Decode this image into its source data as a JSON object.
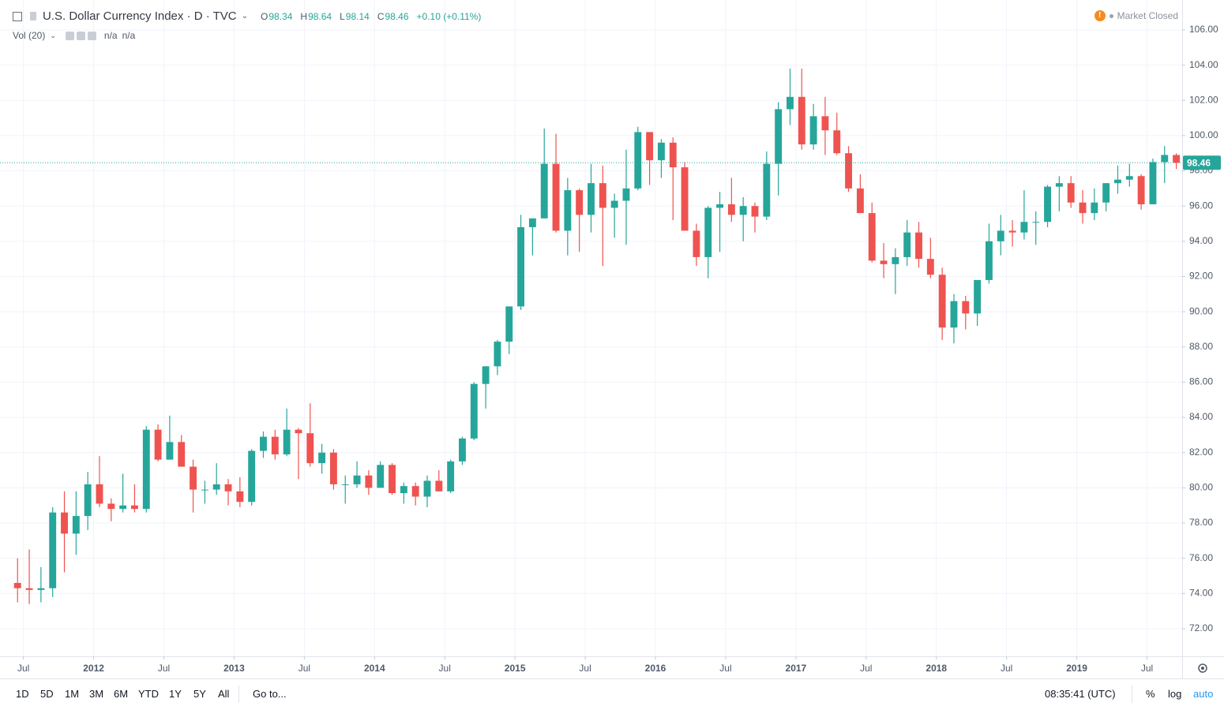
{
  "legend": {
    "symbol": "U.S. Dollar Currency Index · D · TVC",
    "open_key": "O",
    "open": "98.34",
    "high_key": "H",
    "high": "98.64",
    "low_key": "L",
    "low": "98.14",
    "close_key": "C",
    "close": "98.46",
    "change": "+0.10 (+0.11%)"
  },
  "volume": {
    "name": "Vol (20)",
    "value_1": "n/a",
    "value_2": "n/a"
  },
  "status": "Market Closed",
  "toolbar": {
    "ranges": [
      "1D",
      "5D",
      "1M",
      "3M",
      "6M",
      "YTD",
      "1Y",
      "5Y",
      "All"
    ],
    "goto": "Go to...",
    "time": "08:35:41 (UTC)",
    "percent": "%",
    "log": "log",
    "auto": "auto"
  },
  "chart_data": {
    "type": "candlestick",
    "up_color": "#26a69a",
    "down_color": "#ef5350",
    "grid": true,
    "price_line_color": "#26a69a",
    "last_price": 98.46,
    "x": [
      "2011-06",
      "2011-07",
      "2011-08",
      "2011-09",
      "2011-10",
      "2011-11",
      "2011-12",
      "2012-01",
      "2012-02",
      "2012-03",
      "2012-04",
      "2012-05",
      "2012-06",
      "2012-07",
      "2012-08",
      "2012-09",
      "2012-10",
      "2012-11",
      "2012-12",
      "2013-01",
      "2013-02",
      "2013-03",
      "2013-04",
      "2013-05",
      "2013-06",
      "2013-07",
      "2013-08",
      "2013-09",
      "2013-10",
      "2013-11",
      "2013-12",
      "2014-01",
      "2014-02",
      "2014-03",
      "2014-04",
      "2014-05",
      "2014-06",
      "2014-07",
      "2014-08",
      "2014-09",
      "2014-10",
      "2014-11",
      "2014-12",
      "2015-01",
      "2015-02",
      "2015-03",
      "2015-04",
      "2015-05",
      "2015-06",
      "2015-07",
      "2015-08",
      "2015-09",
      "2015-10",
      "2015-11",
      "2015-12",
      "2016-01",
      "2016-02",
      "2016-03",
      "2016-04",
      "2016-05",
      "2016-06",
      "2016-07",
      "2016-08",
      "2016-09",
      "2016-10",
      "2016-11",
      "2016-12",
      "2017-01",
      "2017-02",
      "2017-03",
      "2017-04",
      "2017-05",
      "2017-06",
      "2017-07",
      "2017-08",
      "2017-09",
      "2017-10",
      "2017-11",
      "2017-12",
      "2018-01",
      "2018-02",
      "2018-03",
      "2018-04",
      "2018-05",
      "2018-06",
      "2018-07",
      "2018-08",
      "2018-09",
      "2018-10",
      "2018-11",
      "2018-12",
      "2019-01",
      "2019-02",
      "2019-03",
      "2019-04",
      "2019-05",
      "2019-06",
      "2019-07",
      "2019-08",
      "2019-09"
    ],
    "open": [
      74.6,
      74.3,
      74.2,
      74.3,
      78.6,
      77.4,
      78.4,
      80.2,
      79.1,
      78.8,
      79.0,
      78.8,
      83.3,
      81.6,
      82.6,
      81.2,
      79.9,
      79.9,
      80.2,
      79.8,
      79.2,
      82.1,
      82.9,
      81.9,
      83.3,
      83.1,
      81.4,
      82.0,
      80.2,
      80.2,
      80.7,
      80.0,
      81.3,
      79.7,
      80.1,
      79.5,
      80.4,
      79.8,
      81.5,
      82.8,
      85.9,
      86.9,
      88.3,
      90.3,
      94.8,
      95.3,
      98.4,
      94.6,
      96.9,
      95.5,
      97.3,
      95.9,
      96.3,
      97.0,
      100.2,
      98.6,
      99.6,
      98.2,
      94.6,
      93.1,
      95.9,
      96.1,
      95.5,
      96.0,
      95.4,
      98.4,
      101.5,
      102.2,
      99.5,
      101.1,
      100.3,
      99.0,
      97.0,
      95.6,
      92.9,
      92.7,
      93.1,
      94.5,
      93.0,
      92.1,
      89.1,
      90.6,
      89.9,
      91.8,
      94.0,
      94.6,
      94.5,
      95.1,
      95.1,
      97.1,
      97.3,
      96.2,
      95.6,
      96.2,
      97.3,
      97.5,
      97.7,
      96.1,
      98.5,
      98.9
    ],
    "high": [
      76.0,
      76.5,
      75.5,
      78.9,
      79.8,
      79.8,
      80.9,
      81.8,
      79.4,
      80.8,
      80.2,
      83.5,
      83.6,
      84.1,
      83.0,
      81.6,
      80.4,
      81.4,
      80.5,
      80.6,
      82.2,
      83.2,
      83.3,
      84.5,
      83.4,
      84.8,
      82.5,
      82.2,
      80.7,
      81.5,
      81.0,
      81.5,
      81.4,
      80.3,
      80.3,
      80.7,
      81.0,
      81.6,
      82.9,
      86.0,
      86.9,
      88.4,
      90.3,
      95.5,
      95.3,
      100.4,
      100.1,
      97.6,
      97.0,
      98.4,
      98.3,
      96.7,
      99.2,
      100.5,
      100.2,
      99.8,
      99.9,
      98.5,
      95.0,
      96.0,
      96.8,
      97.6,
      96.5,
      96.2,
      99.1,
      101.9,
      103.8,
      103.8,
      101.8,
      102.2,
      101.3,
      99.4,
      97.8,
      96.2,
      93.9,
      93.6,
      95.2,
      95.1,
      94.2,
      92.5,
      91.0,
      90.9,
      91.8,
      95.0,
      95.5,
      95.2,
      96.9,
      95.7,
      97.2,
      97.7,
      97.7,
      96.9,
      97.0,
      97.3,
      98.3,
      98.4,
      97.8,
      98.7,
      99.4,
      99.0
    ],
    "low": [
      73.5,
      73.4,
      73.5,
      73.8,
      75.2,
      76.2,
      77.6,
      78.9,
      78.1,
      78.6,
      78.6,
      78.6,
      81.5,
      81.6,
      81.2,
      78.6,
      79.1,
      79.6,
      79.0,
      78.9,
      79.0,
      81.7,
      81.6,
      81.8,
      80.5,
      81.2,
      80.8,
      79.9,
      79.1,
      80.0,
      79.6,
      80.0,
      79.6,
      79.1,
      79.0,
      78.9,
      79.8,
      79.7,
      81.3,
      82.7,
      84.5,
      86.4,
      87.6,
      90.1,
      93.2,
      95.3,
      94.5,
      93.2,
      93.4,
      94.5,
      92.6,
      94.2,
      93.8,
      96.9,
      97.2,
      97.6,
      95.2,
      94.6,
      92.6,
      91.9,
      93.4,
      95.1,
      94.0,
      94.5,
      95.2,
      96.6,
      100.6,
      99.2,
      99.2,
      98.9,
      98.9,
      96.8,
      95.6,
      92.8,
      91.9,
      91.0,
      92.6,
      92.5,
      91.9,
      88.4,
      88.2,
      89.0,
      89.2,
      91.6,
      93.2,
      93.7,
      94.1,
      93.8,
      94.8,
      95.7,
      95.9,
      95.0,
      95.2,
      95.7,
      96.7,
      97.1,
      95.8,
      96.1,
      97.3,
      98.1
    ],
    "close": [
      74.3,
      74.2,
      74.3,
      78.6,
      77.4,
      78.4,
      80.2,
      79.1,
      78.8,
      79.0,
      78.8,
      83.3,
      81.6,
      82.6,
      81.2,
      79.9,
      79.9,
      80.2,
      79.8,
      79.2,
      82.1,
      82.9,
      81.9,
      83.3,
      83.1,
      81.4,
      82.0,
      80.2,
      80.2,
      80.7,
      80.0,
      81.3,
      79.7,
      80.1,
      79.5,
      80.4,
      79.8,
      81.5,
      82.8,
      85.9,
      86.9,
      88.3,
      90.3,
      94.8,
      95.3,
      98.4,
      94.6,
      96.9,
      95.5,
      97.3,
      95.9,
      96.3,
      97.0,
      100.2,
      98.6,
      99.6,
      98.2,
      94.6,
      93.1,
      95.9,
      96.1,
      95.5,
      96.0,
      95.4,
      98.4,
      101.5,
      102.2,
      99.5,
      101.1,
      100.3,
      99.0,
      97.0,
      95.6,
      92.9,
      92.7,
      93.1,
      94.5,
      93.0,
      92.1,
      89.1,
      90.6,
      89.9,
      91.8,
      94.0,
      94.6,
      94.5,
      95.1,
      95.1,
      97.1,
      97.3,
      96.2,
      95.6,
      96.2,
      97.3,
      97.5,
      97.7,
      96.1,
      98.5,
      98.9,
      98.46
    ],
    "xlim": [
      "2011-05",
      "2019-10"
    ],
    "xticks": [
      {
        "value": "2011-07",
        "label": "Jul"
      },
      {
        "value": "2012-01",
        "label": "2012"
      },
      {
        "value": "2012-07",
        "label": "Jul"
      },
      {
        "value": "2013-01",
        "label": "2013"
      },
      {
        "value": "2013-07",
        "label": "Jul"
      },
      {
        "value": "2014-01",
        "label": "2014"
      },
      {
        "value": "2014-07",
        "label": "Jul"
      },
      {
        "value": "2015-01",
        "label": "2015"
      },
      {
        "value": "2015-07",
        "label": "Jul"
      },
      {
        "value": "2016-01",
        "label": "2016"
      },
      {
        "value": "2016-07",
        "label": "Jul"
      },
      {
        "value": "2017-01",
        "label": "2017"
      },
      {
        "value": "2017-07",
        "label": "Jul"
      },
      {
        "value": "2018-01",
        "label": "2018"
      },
      {
        "value": "2018-07",
        "label": "Jul"
      },
      {
        "value": "2019-01",
        "label": "2019"
      },
      {
        "value": "2019-07",
        "label": "Jul"
      }
    ],
    "ylim": [
      70.43,
      107.7
    ],
    "yticks": [
      {
        "value": 72,
        "label": "72.00"
      },
      {
        "value": 74,
        "label": "74.00"
      },
      {
        "value": 76,
        "label": "76.00"
      },
      {
        "value": 78,
        "label": "78.00"
      },
      {
        "value": 80,
        "label": "80.00"
      },
      {
        "value": 82,
        "label": "82.00"
      },
      {
        "value": 84,
        "label": "84.00"
      },
      {
        "value": 86,
        "label": "86.00"
      },
      {
        "value": 88,
        "label": "88.00"
      },
      {
        "value": 90,
        "label": "90.00"
      },
      {
        "value": 92,
        "label": "92.00"
      },
      {
        "value": 94,
        "label": "94.00"
      },
      {
        "value": 96,
        "label": "96.00"
      },
      {
        "value": 98,
        "label": "98.00"
      },
      {
        "value": 100,
        "label": "100.00"
      },
      {
        "value": 102,
        "label": "102.00"
      },
      {
        "value": 104,
        "label": "104.00"
      },
      {
        "value": 106,
        "label": "106.00"
      }
    ]
  }
}
